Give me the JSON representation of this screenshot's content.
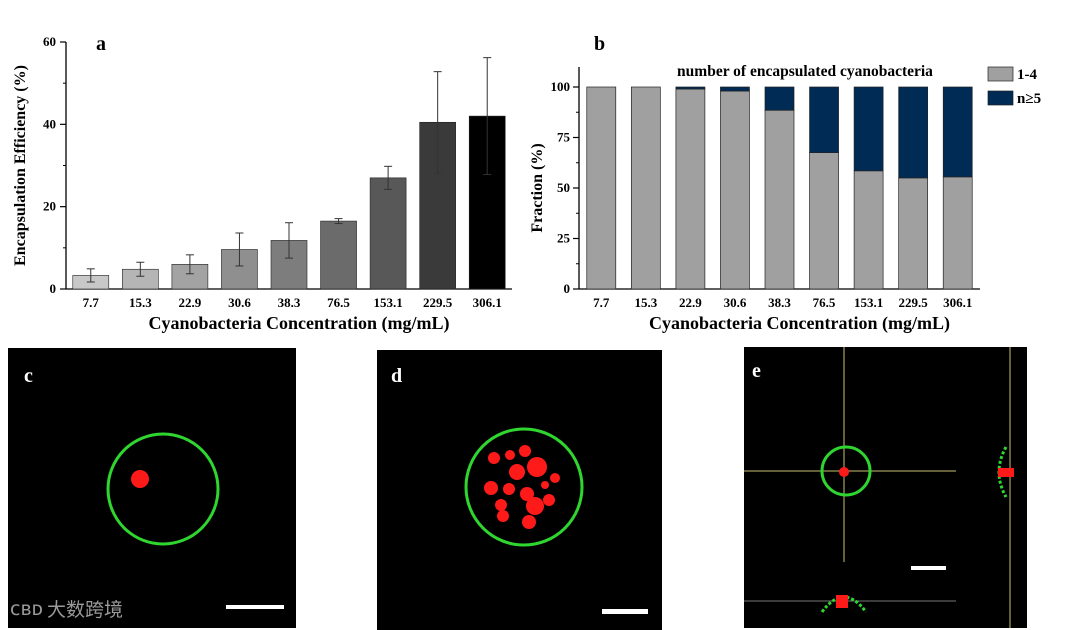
{
  "chart_data": [
    {
      "type": "bar",
      "panel_label": "a",
      "title": "",
      "xlabel": "Cyanobacteria Concentration (mg/mL)",
      "ylabel": "Encapsulation Efficiency (%)",
      "categories": [
        "7.7",
        "15.3",
        "22.9",
        "30.6",
        "38.3",
        "76.5",
        "153.1",
        "229.5",
        "306.1"
      ],
      "values": [
        3.3,
        4.8,
        6.0,
        9.6,
        11.8,
        16.5,
        27.0,
        40.5,
        42.0
      ],
      "errors": [
        1.6,
        1.7,
        2.3,
        4.0,
        4.3,
        0.6,
        2.8,
        12.3,
        14.2
      ],
      "bar_colors": [
        "#c8c8c8",
        "#b5b5b5",
        "#a3a3a3",
        "#8f8f8f",
        "#7d7d7d",
        "#6b6b6b",
        "#585858",
        "#3a3a3a",
        "#000000"
      ],
      "ylim": [
        0,
        60
      ],
      "yticks": [
        "0",
        "20",
        "40",
        "60"
      ]
    },
    {
      "type": "stacked-bar",
      "panel_label": "b",
      "title": "number of encapsulated cyanobacteria",
      "xlabel": "Cyanobacteria Concentration (mg/mL)",
      "ylabel": "Fraction (%)",
      "categories": [
        "7.7",
        "15.3",
        "22.9",
        "30.6",
        "38.3",
        "76.5",
        "153.1",
        "229.5",
        "306.1"
      ],
      "series": [
        {
          "name": "1-4",
          "color": "#a0a0a0",
          "values": [
            100,
            100,
            99,
            98,
            88.5,
            67.5,
            58.5,
            55,
            55.5
          ]
        },
        {
          "name": "n≥5",
          "color": "#002b55",
          "values": [
            0,
            0,
            1,
            2,
            11.5,
            32.5,
            41.5,
            45,
            44.5
          ]
        }
      ],
      "ylim": [
        0,
        100
      ],
      "yticks": [
        "0",
        "25",
        "50",
        "75",
        "100"
      ],
      "legend_position": "right"
    }
  ],
  "images": {
    "c": {
      "label": "c"
    },
    "d": {
      "label": "d"
    },
    "e": {
      "label": "e"
    }
  },
  "watermark": {
    "text": "大数跨境",
    "logo": "ᴄʙᴅ"
  }
}
